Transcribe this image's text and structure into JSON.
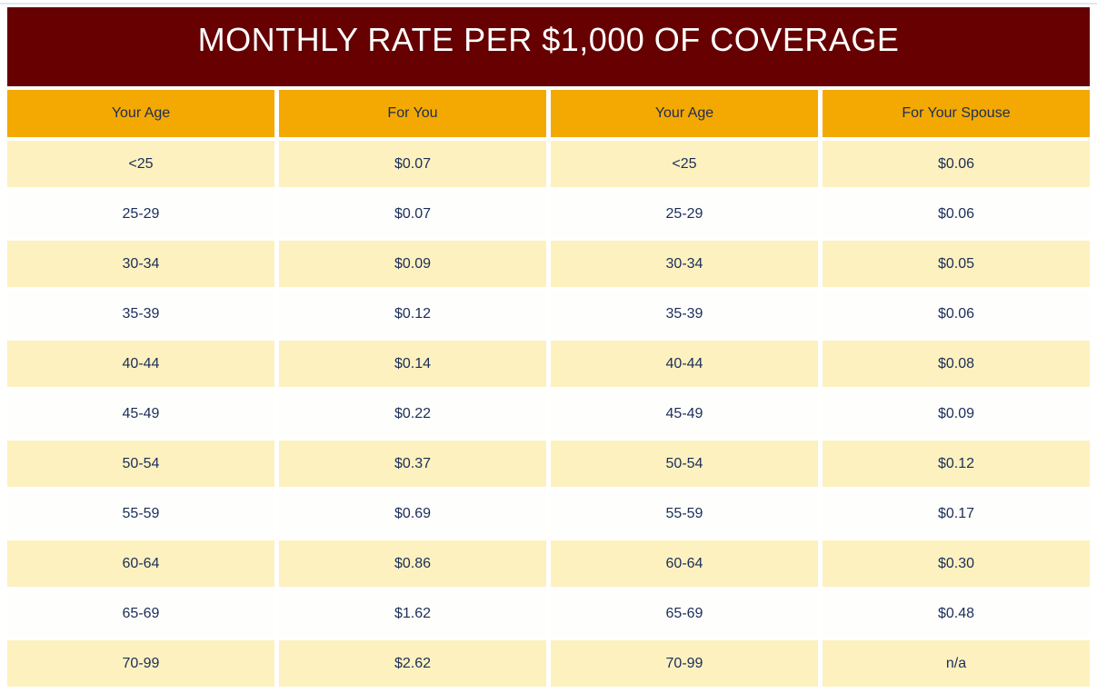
{
  "page": {
    "title": "MONTHLY RATE PER $1,000 OF COVERAGE"
  },
  "colors": {
    "title_band_background": "#660001",
    "title_text": "#FFFFFF",
    "header_background": "#F3A901",
    "row_cream_background": "#FDF1BF",
    "row_white_background": "#FEFEFC",
    "cell_text_navy": "#1B2D59",
    "top_rule_gray": "#E3E7EC"
  },
  "table": {
    "headers": [
      "Your Age",
      "For You",
      "Your Age",
      "For Your Spouse"
    ],
    "rows": [
      [
        "<25",
        "$0.07",
        "<25",
        "$0.06"
      ],
      [
        "25-29",
        "$0.07",
        "25-29",
        "$0.06"
      ],
      [
        "30-34",
        "$0.09",
        "30-34",
        "$0.05"
      ],
      [
        "35-39",
        "$0.12",
        "35-39",
        "$0.06"
      ],
      [
        "40-44",
        "$0.14",
        "40-44",
        "$0.08"
      ],
      [
        "45-49",
        "$0.22",
        "45-49",
        "$0.09"
      ],
      [
        "50-54",
        "$0.37",
        "50-54",
        "$0.12"
      ],
      [
        "55-59",
        "$0.69",
        "55-59",
        "$0.17"
      ],
      [
        "60-64",
        "$0.86",
        "60-64",
        "$0.30"
      ],
      [
        "65-69",
        "$1.62",
        "65-69",
        "$0.48"
      ],
      [
        "70-99",
        "$2.62",
        "70-99",
        "n/a"
      ]
    ]
  },
  "chart_data": {
    "type": "table",
    "title": "MONTHLY RATE PER $1,000 OF COVERAGE",
    "columns": [
      "Your Age",
      "For You",
      "Your Age",
      "For Your Spouse"
    ],
    "age_bands": [
      "<25",
      "25-29",
      "30-34",
      "35-39",
      "40-44",
      "45-49",
      "50-54",
      "55-59",
      "60-64",
      "65-69",
      "70-99"
    ],
    "monthly_rate_for_you": [
      0.07,
      0.07,
      0.09,
      0.12,
      0.14,
      0.22,
      0.37,
      0.69,
      0.86,
      1.62,
      2.62
    ],
    "monthly_rate_for_spouse": [
      0.06,
      0.06,
      0.05,
      0.06,
      0.08,
      0.09,
      0.12,
      0.17,
      0.3,
      0.48,
      null
    ],
    "spouse_rate_not_available_label": "n/a",
    "units": "USD per $1,000 of coverage per month"
  }
}
